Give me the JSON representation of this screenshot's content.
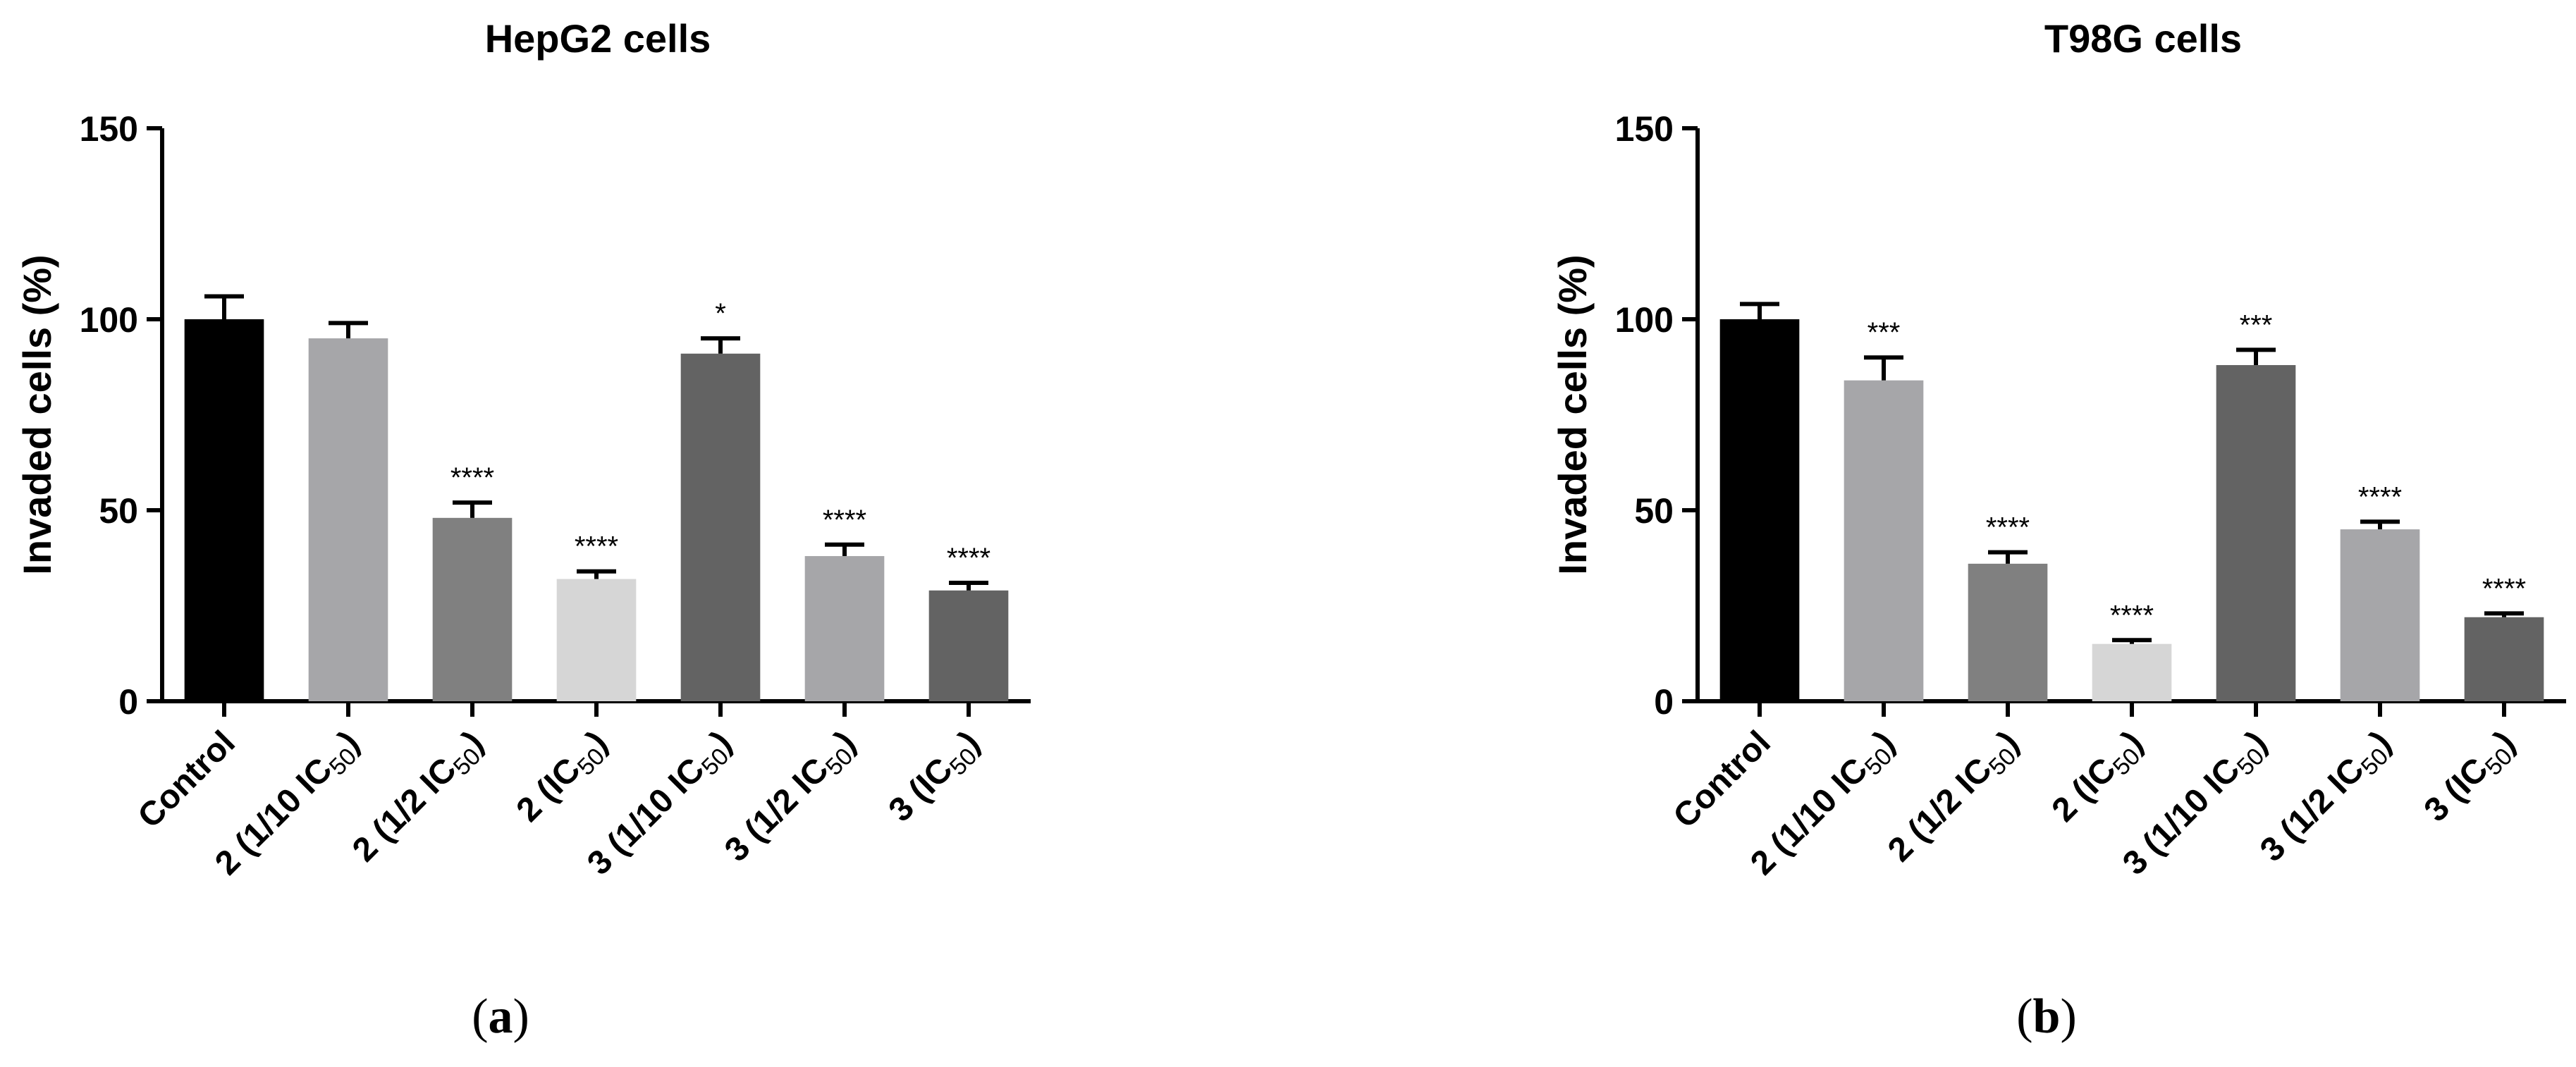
{
  "chart_data": [
    {
      "type": "bar",
      "title": "HepG2 cells",
      "ylabel": "Invaded cells (%)",
      "xlabel": "",
      "ylim": [
        0,
        150
      ],
      "yticks": [
        0,
        50,
        100,
        150
      ],
      "panel_label": "(a)",
      "categories": [
        {
          "main": "Control",
          "sub": "",
          "end": ""
        },
        {
          "main": "2 (1/10 IC",
          "sub": "50",
          "end": ")"
        },
        {
          "main": "2 (1/2 IC",
          "sub": "50",
          "end": ")"
        },
        {
          "main": "2 (IC",
          "sub": "50",
          "end": ")"
        },
        {
          "main": "3 (1/10 IC",
          "sub": "50",
          "end": ")"
        },
        {
          "main": "3 (1/2 IC",
          "sub": "50",
          "end": ")"
        },
        {
          "main": "3 (IC",
          "sub": "50",
          "end": ")"
        }
      ],
      "values": [
        100,
        95,
        48,
        32,
        91,
        38,
        29
      ],
      "errors": [
        6,
        4,
        4,
        2,
        4,
        3,
        2
      ],
      "significance": [
        "",
        "",
        "****",
        "****",
        "*",
        "****",
        "****"
      ],
      "colors": [
        "#000000",
        "#a6a6a9",
        "#808080",
        "#d6d6d6",
        "#636363",
        "#a6a6a9",
        "#636363"
      ],
      "grid": false
    },
    {
      "type": "bar",
      "title": "T98G cells",
      "ylabel": "Invaded cells (%)",
      "xlabel": "",
      "ylim": [
        0,
        150
      ],
      "yticks": [
        0,
        50,
        100,
        150
      ],
      "panel_label": "(b)",
      "categories": [
        {
          "main": "Control",
          "sub": "",
          "end": ""
        },
        {
          "main": "2 (1/10 IC",
          "sub": "50",
          "end": ")"
        },
        {
          "main": "2 (1/2 IC",
          "sub": "50",
          "end": ")"
        },
        {
          "main": "2 (IC",
          "sub": "50",
          "end": ")"
        },
        {
          "main": "3 (1/10 IC",
          "sub": "50",
          "end": ")"
        },
        {
          "main": "3 (1/2 IC",
          "sub": "50",
          "end": ")"
        },
        {
          "main": "3 (IC",
          "sub": "50",
          "end": ")"
        }
      ],
      "values": [
        100,
        84,
        36,
        15,
        88,
        45,
        22
      ],
      "errors": [
        4,
        6,
        3,
        1,
        4,
        2,
        1
      ],
      "significance": [
        "",
        "***",
        "****",
        "****",
        "***",
        "****",
        "****"
      ],
      "colors": [
        "#000000",
        "#a6a6a9",
        "#808080",
        "#d6d6d6",
        "#636363",
        "#a6a6a9",
        "#636363"
      ],
      "grid": false
    }
  ]
}
